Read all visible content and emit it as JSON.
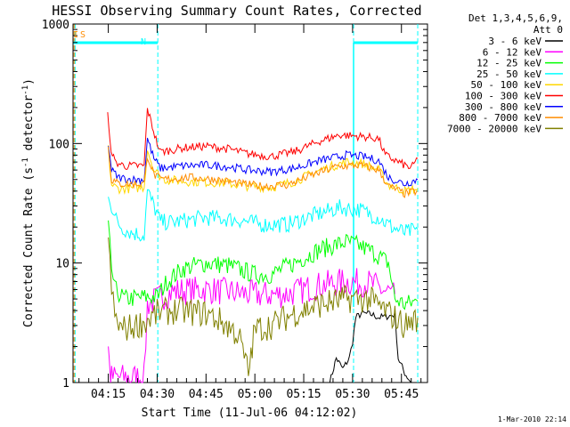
{
  "chart_data": {
    "type": "line",
    "title": "HESSI Observing Summary Count Rates, Corrected",
    "xlabel": "Start Time (11-Jul-06 04:12:02)",
    "ylabel": "Corrected Count Rate (s",
    "ylabel_sup1": "-1",
    "ylabel_mid": " detector",
    "ylabel_sup2": "-1",
    "ylabel_end": ")",
    "y_scale": "log",
    "ylim": [
      1,
      1000
    ],
    "xlim_minutes": [
      4.17,
      93.0
    ],
    "x_tick_labels": [
      "04:15",
      "04:30",
      "04:45",
      "05:00",
      "05:15",
      "05:30",
      "05:45"
    ],
    "x_ticks_minutes": [
      15,
      30,
      45,
      60,
      75,
      90,
      105
    ],
    "y_tick_labels": [
      "1",
      "10",
      "100",
      "1000"
    ],
    "y_ticks": [
      1,
      10,
      100,
      1000
    ],
    "legend_header": [
      "Det 1,3,4,5,6,9,",
      "Att 0"
    ],
    "legend_position": "right",
    "timestamp": "1-Mar-2010 22:14",
    "markers": [
      {
        "text": "I",
        "color": "#ff8c00"
      },
      {
        "text": "S",
        "color": "#ff8c00"
      },
      {
        "text": "N",
        "color": "#00ffff"
      }
    ],
    "series": [
      {
        "name": "3 - 6 keV",
        "color": "#000000",
        "points": [
          [
            83,
            1.0
          ],
          [
            85,
            1.6
          ],
          [
            87,
            1.3
          ],
          [
            89,
            1.6
          ],
          [
            90,
            2.2
          ],
          [
            91,
            3.5
          ],
          [
            93,
            3.8
          ],
          [
            96,
            3.7
          ],
          [
            98,
            3.5
          ],
          [
            101,
            3.6
          ],
          [
            103,
            3.7
          ],
          [
            104,
            1.6
          ],
          [
            106,
            1.2
          ],
          [
            108,
            1.0
          ]
        ]
      },
      {
        "name": "6 - 12 keV",
        "color": "#ff00ff",
        "points": [
          [
            15,
            2.2
          ],
          [
            15.5,
            1.2
          ],
          [
            16,
            1.1
          ],
          [
            19,
            1.1
          ],
          [
            26,
            1.1
          ],
          [
            27,
            4.5
          ],
          [
            29,
            4.8
          ],
          [
            30,
            5.0
          ],
          [
            35,
            5.8
          ],
          [
            45,
            6.0
          ],
          [
            55,
            5.6
          ],
          [
            62,
            5.4
          ],
          [
            70,
            5.5
          ],
          [
            80,
            6.5
          ],
          [
            88,
            7.0
          ],
          [
            95,
            6.8
          ],
          [
            100,
            5.8
          ],
          [
            103,
            5.5
          ]
        ]
      },
      {
        "name": "12 - 25 keV",
        "color": "#00ff00",
        "points": [
          [
            15,
            20
          ],
          [
            16,
            9
          ],
          [
            17,
            6
          ],
          [
            20,
            5
          ],
          [
            27,
            5.2
          ],
          [
            30,
            5.2
          ],
          [
            33,
            7
          ],
          [
            38,
            9
          ],
          [
            45,
            10
          ],
          [
            52,
            9.5
          ],
          [
            60,
            8
          ],
          [
            65,
            8
          ],
          [
            72,
            10
          ],
          [
            80,
            13
          ],
          [
            88,
            15
          ],
          [
            92,
            14
          ],
          [
            97,
            12
          ],
          [
            101,
            10
          ],
          [
            103,
            5
          ],
          [
            106,
            4.5
          ],
          [
            110,
            4.8
          ]
        ]
      },
      {
        "name": "25 - 50 keV",
        "color": "#00ffff",
        "points": [
          [
            15,
            40
          ],
          [
            16,
            30
          ],
          [
            17,
            24
          ],
          [
            19,
            20
          ],
          [
            22,
            18
          ],
          [
            26,
            17
          ],
          [
            27,
            40
          ],
          [
            29,
            30
          ],
          [
            31,
            22
          ],
          [
            35,
            22
          ],
          [
            45,
            24
          ],
          [
            55,
            23
          ],
          [
            62,
            21
          ],
          [
            70,
            21
          ],
          [
            78,
            25
          ],
          [
            86,
            29
          ],
          [
            92,
            28
          ],
          [
            98,
            24
          ],
          [
            102,
            20
          ],
          [
            106,
            18
          ],
          [
            110,
            19
          ]
        ]
      },
      {
        "name": "50 - 100 keV",
        "color": "#ffd700",
        "points": [
          [
            15,
            90
          ],
          [
            16,
            45
          ],
          [
            18,
            42
          ],
          [
            22,
            42
          ],
          [
            26,
            43
          ],
          [
            27,
            90
          ],
          [
            29,
            60
          ],
          [
            32,
            50
          ],
          [
            40,
            48
          ],
          [
            50,
            47
          ],
          [
            58,
            44
          ],
          [
            65,
            43
          ],
          [
            72,
            48
          ],
          [
            80,
            60
          ],
          [
            88,
            70
          ],
          [
            93,
            68
          ],
          [
            98,
            60
          ],
          [
            101,
            45
          ],
          [
            106,
            40
          ],
          [
            110,
            42
          ]
        ]
      },
      {
        "name": "100 - 300 keV",
        "color": "#ff0000",
        "points": [
          [
            14.8,
            175
          ],
          [
            15.5,
            100
          ],
          [
            17,
            70
          ],
          [
            20,
            65
          ],
          [
            26,
            65
          ],
          [
            27,
            195
          ],
          [
            28.5,
            140
          ],
          [
            30,
            100
          ],
          [
            31,
            85
          ],
          [
            38,
            92
          ],
          [
            45,
            95
          ],
          [
            52,
            90
          ],
          [
            58,
            82
          ],
          [
            65,
            78
          ],
          [
            72,
            85
          ],
          [
            80,
            105
          ],
          [
            86,
            118
          ],
          [
            92,
            115
          ],
          [
            98,
            110
          ],
          [
            100,
            80
          ],
          [
            104,
            70
          ],
          [
            108,
            62
          ],
          [
            110,
            75
          ]
        ]
      },
      {
        "name": "300 - 800 keV",
        "color": "#0000ff",
        "points": [
          [
            15,
            100
          ],
          [
            16,
            60
          ],
          [
            18,
            52
          ],
          [
            22,
            50
          ],
          [
            26,
            50
          ],
          [
            27,
            110
          ],
          [
            29,
            75
          ],
          [
            31,
            62
          ],
          [
            38,
            65
          ],
          [
            45,
            66
          ],
          [
            52,
            64
          ],
          [
            58,
            60
          ],
          [
            65,
            58
          ],
          [
            72,
            62
          ],
          [
            80,
            72
          ],
          [
            88,
            80
          ],
          [
            93,
            78
          ],
          [
            98,
            72
          ],
          [
            101,
            52
          ],
          [
            106,
            46
          ],
          [
            110,
            50
          ]
        ]
      },
      {
        "name": "800 - 7000 keV",
        "color": "#ff8c00",
        "points": [
          [
            15,
            95
          ],
          [
            16,
            50
          ],
          [
            18,
            46
          ],
          [
            22,
            46
          ],
          [
            26,
            46
          ],
          [
            27,
            80
          ],
          [
            29,
            55
          ],
          [
            31,
            50
          ],
          [
            40,
            52
          ],
          [
            48,
            50
          ],
          [
            56,
            46
          ],
          [
            62,
            44
          ],
          [
            70,
            45
          ],
          [
            78,
            55
          ],
          [
            85,
            64
          ],
          [
            92,
            66
          ],
          [
            98,
            60
          ],
          [
            101,
            44
          ],
          [
            106,
            38
          ],
          [
            110,
            40
          ]
        ]
      },
      {
        "name": "7000 - 20000 keV",
        "color": "#808000",
        "points": [
          [
            15,
            15
          ],
          [
            16,
            6
          ],
          [
            17,
            3.5
          ],
          [
            19,
            2.8
          ],
          [
            22,
            2.9
          ],
          [
            26,
            3.2
          ],
          [
            27,
            3.3
          ],
          [
            30,
            3.8
          ],
          [
            35,
            4
          ],
          [
            45,
            3.8
          ],
          [
            50,
            3.2
          ],
          [
            55,
            2.5
          ],
          [
            58,
            1.2
          ],
          [
            60,
            2.8
          ],
          [
            65,
            3
          ],
          [
            72,
            3.8
          ],
          [
            80,
            4.5
          ],
          [
            88,
            5
          ],
          [
            95,
            5
          ],
          [
            100,
            4
          ],
          [
            103,
            3.5
          ],
          [
            106,
            3
          ],
          [
            110,
            3.5
          ]
        ]
      }
    ]
  }
}
